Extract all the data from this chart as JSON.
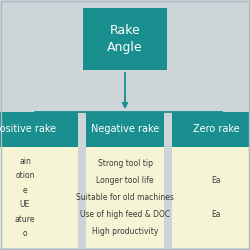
{
  "background_color": "#cdd5d9",
  "teal_color": "#1a8f8f",
  "cream_color": "#f5f5d5",
  "title": "Rake\nAngle",
  "boxes": [
    {
      "label": "Positive rake",
      "bullet_lines": [
        "ain",
        "otion",
        "e",
        "UE",
        "ature",
        "o"
      ]
    },
    {
      "label": "Negative rake",
      "bullet_lines": [
        "Strong tool tip",
        "Longer tool life",
        "Suitable for old machines",
        "Use of high feed & DOC",
        "High productivity"
      ]
    },
    {
      "label": "Zero rake",
      "bullet_lines": [
        "Ea",
        "Ea"
      ]
    }
  ]
}
